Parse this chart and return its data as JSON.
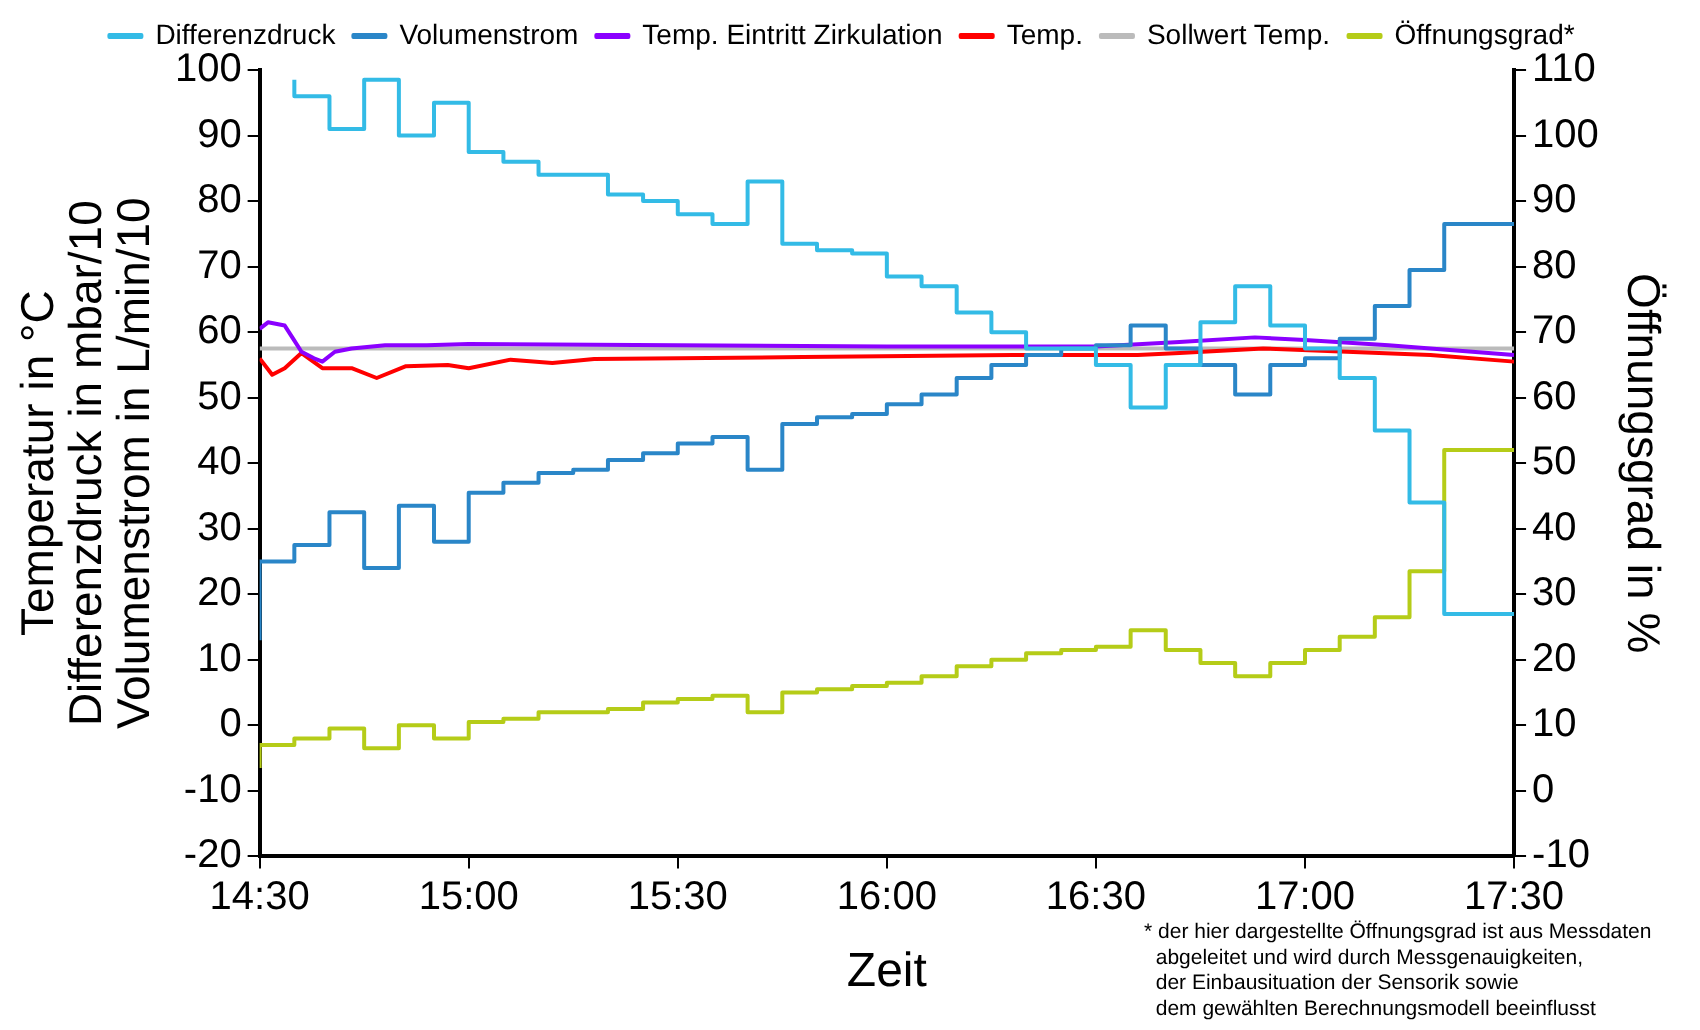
{
  "chart_data": {
    "type": "step",
    "xlabel": "Zeit",
    "ylabel": "Temperatur in °C\nDifferenzdruck in mbar/10\nVolumenstrom in L/min/10",
    "y2label": "Öffnungsgrad in %",
    "annotations": [
      "* der hier dargestellte Öffnungsgrad ist aus Messdaten\n  abgeleitet und wird durch Messgenauigkeiten,\n  der Einbausituation der Sensorik sowie\n  dem gewählten Berechnungsmodell beeinflusst"
    ],
    "x": [
      14.5,
      14.583,
      14.667,
      14.75,
      14.833,
      14.917,
      15,
      15.083,
      15.167,
      15.25,
      15.333,
      15.417,
      15.5,
      15.583,
      15.667,
      15.75,
      15.833,
      15.917,
      16,
      16.083,
      16.167,
      16.25,
      16.333,
      16.417,
      16.5,
      16.583,
      16.667,
      16.75,
      16.833,
      16.917,
      17,
      17.083,
      17.167,
      17.25,
      17.333,
      17.417,
      17.5
    ],
    "series": [
      {
        "name": "Differenzdruck",
        "color": "#33bbe6",
        "values": [
          null,
          98.5,
          96,
          91,
          98.5,
          90,
          95,
          87.5,
          86,
          84,
          84,
          81,
          80,
          78,
          76.5,
          83,
          73.5,
          72.5,
          72,
          68.5,
          67,
          63,
          60,
          57.5,
          57.5,
          55,
          48.5,
          55,
          61.5,
          67,
          61,
          57.5,
          53,
          45,
          34,
          17,
          17
        ]
      },
      {
        "name": "Volumenstrom",
        "color": "#2a86c8",
        "values": [
          13,
          25,
          27.5,
          32.5,
          24,
          33.5,
          28,
          35.5,
          37,
          38.5,
          39,
          40.5,
          41.5,
          43,
          44,
          39,
          46,
          47,
          47.5,
          49,
          50.5,
          53,
          55,
          56.5,
          57.5,
          58,
          61,
          57.5,
          55,
          50.5,
          55,
          56,
          59,
          64,
          69.5,
          76.5,
          76.5
        ]
      },
      {
        "name": "Temp. Eintritt Zirkulation",
        "type": "line",
        "color": "#8b00ff",
        "x": [
          14.5,
          14.52,
          14.56,
          14.58,
          14.6,
          14.63,
          14.65,
          14.68,
          14.72,
          14.8,
          14.9,
          15,
          15.5,
          16,
          16.5,
          16.7,
          16.88,
          17,
          17.2,
          17.5
        ],
        "values": [
          60.5,
          61.5,
          61,
          59,
          57,
          56,
          55.5,
          57,
          57.5,
          58,
          58,
          58.2,
          58,
          57.8,
          57.8,
          58.5,
          59.2,
          58.8,
          58,
          56.5
        ]
      },
      {
        "name": "Temp.",
        "type": "line",
        "color": "#ff0000",
        "x": [
          14.5,
          14.53,
          14.56,
          14.6,
          14.65,
          14.72,
          14.78,
          14.85,
          14.95,
          15,
          15.1,
          15.2,
          15.3,
          15.8,
          16.3,
          16.6,
          16.7,
          16.9,
          17.1,
          17.3,
          17.5
        ],
        "values": [
          56,
          53.5,
          54.5,
          56.8,
          54.5,
          54.5,
          53,
          54.8,
          55,
          54.5,
          55.8,
          55.3,
          55.9,
          56.2,
          56.5,
          56.5,
          56.8,
          57.5,
          57,
          56.5,
          55.5
        ]
      },
      {
        "name": "Sollwert Temp.",
        "type": "line",
        "color": "#bbbbbb",
        "x": [
          14.5,
          17.5
        ],
        "values": [
          57.5,
          57.5
        ]
      },
      {
        "name": "Öffnungsgrad*",
        "axis": "y2",
        "color": "#b5cc18",
        "values": [
          3.5,
          7,
          8,
          9.5,
          6.5,
          10,
          8,
          10.5,
          11,
          12,
          12,
          12.5,
          13.5,
          14,
          14.5,
          12,
          15,
          15.5,
          16,
          16.5,
          17.5,
          19,
          20,
          21,
          21.5,
          22,
          24.5,
          21.5,
          19.5,
          17.5,
          19.5,
          21.5,
          23.5,
          26.5,
          33.5,
          52,
          52
        ]
      }
    ],
    "xlim": [
      14.5,
      17.5
    ],
    "xticks": [
      {
        "value": 14.5,
        "label": "14:30"
      },
      {
        "value": 15,
        "label": "15:00"
      },
      {
        "value": 15.5,
        "label": "15:30"
      },
      {
        "value": 16,
        "label": "16:00"
      },
      {
        "value": 16.5,
        "label": "16:30"
      },
      {
        "value": 17,
        "label": "17:00"
      },
      {
        "value": 17.5,
        "label": "17:30"
      }
    ],
    "ylim": [
      -20,
      100
    ],
    "yticks": [
      -20,
      -10,
      0,
      10,
      20,
      30,
      40,
      50,
      60,
      70,
      80,
      90,
      100
    ],
    "y2lim": [
      -10,
      110
    ],
    "y2ticks": [
      -10,
      0,
      10,
      20,
      30,
      40,
      50,
      60,
      70,
      80,
      90,
      100,
      110
    ],
    "grid": false,
    "legend": "top",
    "marker": "none"
  }
}
